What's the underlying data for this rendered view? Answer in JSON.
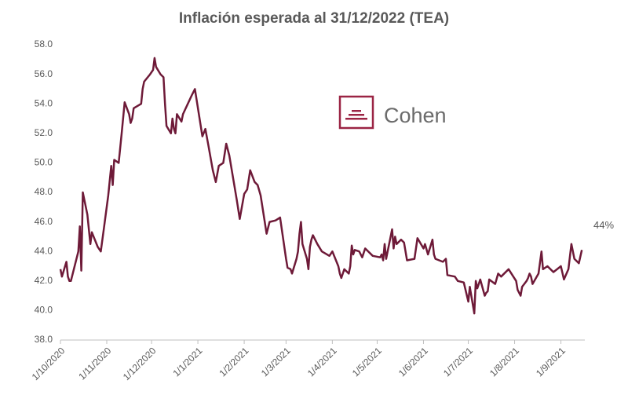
{
  "chart_data": {
    "type": "line",
    "title": "Inflación esperada al 31/12/2022 (TEA)",
    "logo": "Cohen",
    "annotation": "44%",
    "xlim": [
      "2020-10-01",
      "2021-09-17"
    ],
    "ylim": [
      38,
      58
    ],
    "yticks": [
      {
        "value": 38,
        "label": "38.0"
      },
      {
        "value": 40,
        "label": "40.0"
      },
      {
        "value": 42,
        "label": "42.0"
      },
      {
        "value": 44,
        "label": "44.0"
      },
      {
        "value": 46,
        "label": "46.0"
      },
      {
        "value": 48,
        "label": "48.0"
      },
      {
        "value": 50,
        "label": "50.0"
      },
      {
        "value": 52,
        "label": "52.0"
      },
      {
        "value": 54,
        "label": "54.0"
      },
      {
        "value": 56,
        "label": "56.0"
      },
      {
        "value": 58,
        "label": "58.0"
      }
    ],
    "xticks": [
      {
        "value": "2020-10-01",
        "label": "1/10/2020"
      },
      {
        "value": "2020-11-01",
        "label": "1/11/2020"
      },
      {
        "value": "2020-12-01",
        "label": "1/12/2020"
      },
      {
        "value": "2021-01-01",
        "label": "1/1/2021"
      },
      {
        "value": "2021-02-01",
        "label": "1/2/2021"
      },
      {
        "value": "2021-03-01",
        "label": "1/3/2021"
      },
      {
        "value": "2021-04-01",
        "label": "1/4/2021"
      },
      {
        "value": "2021-05-01",
        "label": "1/5/2021"
      },
      {
        "value": "2021-06-01",
        "label": "1/6/2021"
      },
      {
        "value": "2021-07-01",
        "label": "1/7/2021"
      },
      {
        "value": "2021-08-01",
        "label": "1/8/2021"
      },
      {
        "value": "2021-09-01",
        "label": "1/9/2021"
      }
    ],
    "color": "#6e1a38",
    "x": [
      "2020-10-01",
      "2020-10-02",
      "2020-10-05",
      "2020-10-06",
      "2020-10-07",
      "2020-10-08",
      "2020-10-13",
      "2020-10-14",
      "2020-10-15",
      "2020-10-16",
      "2020-10-19",
      "2020-10-20",
      "2020-10-21",
      "2020-10-22",
      "2020-10-26",
      "2020-10-28",
      "2020-10-30",
      "2020-11-02",
      "2020-11-04",
      "2020-11-05",
      "2020-11-06",
      "2020-11-09",
      "2020-11-10",
      "2020-11-11",
      "2020-11-13",
      "2020-11-16",
      "2020-11-17",
      "2020-11-18",
      "2020-11-19",
      "2020-11-24",
      "2020-11-25",
      "2020-11-26",
      "2020-11-30",
      "2020-12-02",
      "2020-12-03",
      "2020-12-04",
      "2020-12-07",
      "2020-12-09",
      "2020-12-10",
      "2020-12-11",
      "2020-12-14",
      "2020-12-15",
      "2020-12-16",
      "2020-12-17",
      "2020-12-18",
      "2020-12-21",
      "2020-12-22",
      "2020-12-28",
      "2020-12-30",
      "2021-01-04",
      "2021-01-06",
      "2021-01-08",
      "2021-01-11",
      "2021-01-13",
      "2021-01-15",
      "2021-01-18",
      "2021-01-20",
      "2021-01-22",
      "2021-01-25",
      "2021-01-27",
      "2021-01-29",
      "2021-02-01",
      "2021-02-03",
      "2021-02-05",
      "2021-02-08",
      "2021-02-10",
      "2021-02-12",
      "2021-02-16",
      "2021-02-18",
      "2021-02-22",
      "2021-02-25",
      "2021-03-01",
      "2021-03-02",
      "2021-03-04",
      "2021-03-05",
      "2021-03-08",
      "2021-03-09",
      "2021-03-10",
      "2021-03-11",
      "2021-03-12",
      "2021-03-15",
      "2021-03-16",
      "2021-03-17",
      "2021-03-18",
      "2021-03-19",
      "2021-03-22",
      "2021-03-25",
      "2021-03-30",
      "2021-04-01",
      "2021-04-05",
      "2021-04-06",
      "2021-04-07",
      "2021-04-08",
      "2021-04-09",
      "2021-04-12",
      "2021-04-13",
      "2021-04-14",
      "2021-04-15",
      "2021-04-16",
      "2021-04-19",
      "2021-04-21",
      "2021-04-23",
      "2021-04-28",
      "2021-05-03",
      "2021-05-04",
      "2021-05-05",
      "2021-05-06",
      "2021-05-07",
      "2021-05-11",
      "2021-05-12",
      "2021-05-13",
      "2021-05-14",
      "2021-05-17",
      "2021-05-19",
      "2021-05-21",
      "2021-05-26",
      "2021-05-28",
      "2021-06-01",
      "2021-06-02",
      "2021-06-04",
      "2021-06-07",
      "2021-06-08",
      "2021-06-09",
      "2021-06-14",
      "2021-06-16",
      "2021-06-17",
      "2021-06-22",
      "2021-06-24",
      "2021-06-28",
      "2021-07-01",
      "2021-07-02",
      "2021-07-05",
      "2021-07-06",
      "2021-07-07",
      "2021-07-08",
      "2021-07-09",
      "2021-07-12",
      "2021-07-13",
      "2021-07-14",
      "2021-07-15",
      "2021-07-19",
      "2021-07-21",
      "2021-07-23",
      "2021-07-28",
      "2021-08-02",
      "2021-08-03",
      "2021-08-05",
      "2021-08-06",
      "2021-08-09",
      "2021-08-10",
      "2021-08-11",
      "2021-08-12",
      "2021-08-13",
      "2021-08-17",
      "2021-08-19",
      "2021-08-20",
      "2021-08-23",
      "2021-08-27",
      "2021-09-01",
      "2021-09-03",
      "2021-09-06",
      "2021-09-08",
      "2021-09-10",
      "2021-09-13",
      "2021-09-15"
    ],
    "values": [
      42.8,
      42.3,
      43.3,
      42.3,
      42.0,
      42.0,
      44.0,
      45.7,
      42.7,
      48.0,
      46.5,
      45.5,
      44.5,
      45.3,
      44.3,
      44.0,
      45.5,
      47.8,
      49.8,
      48.5,
      50.2,
      50.0,
      51.0,
      52.0,
      54.1,
      53.3,
      52.7,
      53.0,
      53.7,
      54.0,
      55.0,
      55.5,
      56.0,
      56.3,
      57.1,
      56.5,
      56.0,
      55.8,
      54.0,
      52.5,
      52.0,
      53.0,
      52.3,
      52.0,
      53.3,
      52.8,
      53.3,
      54.6,
      55.0,
      51.8,
      52.3,
      51.2,
      49.5,
      48.7,
      49.8,
      50.0,
      51.3,
      50.5,
      48.7,
      47.5,
      46.2,
      47.9,
      48.2,
      49.5,
      48.7,
      48.5,
      47.8,
      45.2,
      46.0,
      46.1,
      46.3,
      43.5,
      42.9,
      42.8,
      42.5,
      43.5,
      44.0,
      45.2,
      46.0,
      44.5,
      43.5,
      42.8,
      44.3,
      44.8,
      45.1,
      44.5,
      44.0,
      43.7,
      44.0,
      43.0,
      42.5,
      42.2,
      42.5,
      42.8,
      42.5,
      43.0,
      44.4,
      43.8,
      44.1,
      44.0,
      43.6,
      44.2,
      43.7,
      43.6,
      43.8,
      43.4,
      44.5,
      43.5,
      45.5,
      44.2,
      45.0,
      44.5,
      44.8,
      44.6,
      43.4,
      43.5,
      44.9,
      44.2,
      44.5,
      43.8,
      44.8,
      43.8,
      43.5,
      43.3,
      43.5,
      42.4,
      42.3,
      42.0,
      41.9,
      40.6,
      41.6,
      39.8,
      42.0,
      41.5,
      41.8,
      42.1,
      41.0,
      41.2,
      41.3,
      42.1,
      41.8,
      42.5,
      42.3,
      42.8,
      42.0,
      41.4,
      41.0,
      41.6,
      42.0,
      42.2,
      42.5,
      42.3,
      41.8,
      42.5,
      44.0,
      42.8,
      43.0,
      42.6,
      43.0,
      42.1,
      42.8,
      44.5,
      43.5,
      43.2,
      44.1
    ]
  }
}
